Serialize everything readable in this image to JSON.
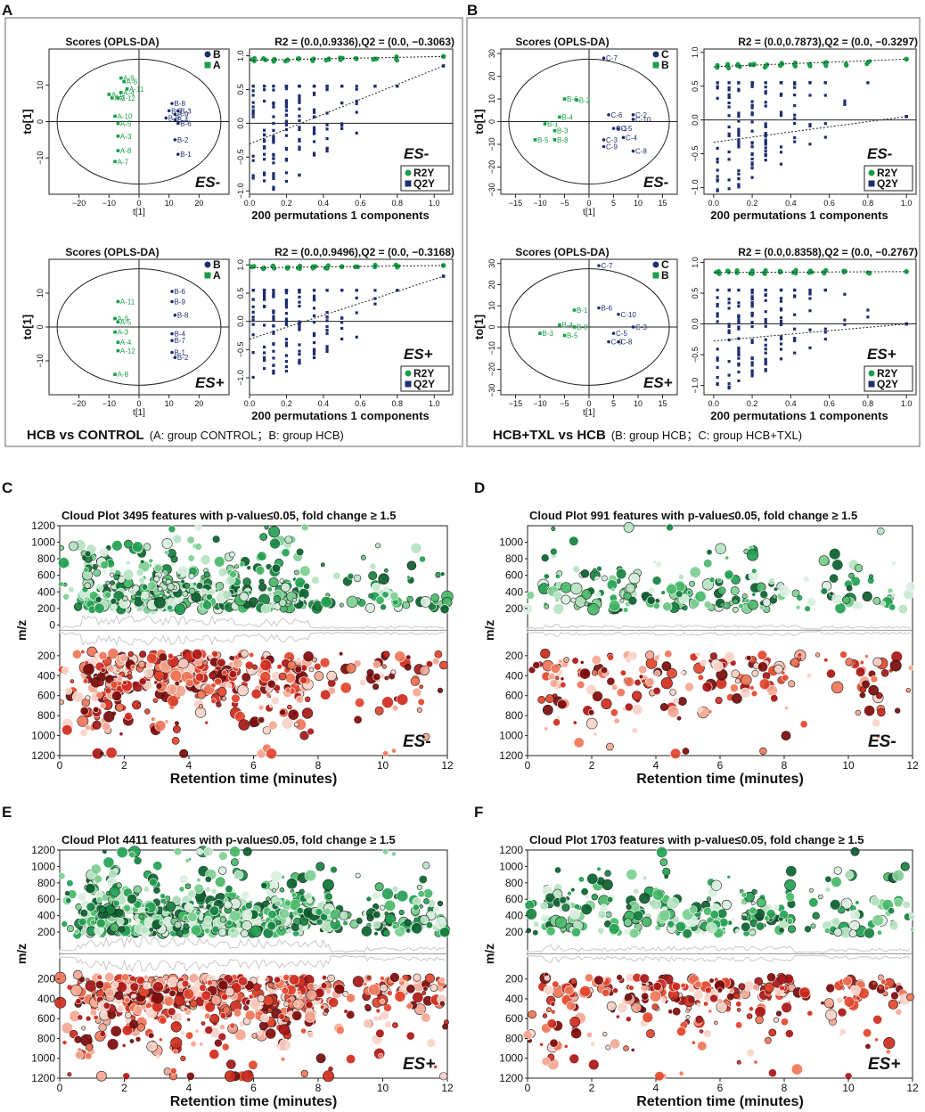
{
  "figure": {
    "panels": {
      "A": {
        "letter": "A",
        "caption_bold": "HCB vs CONTROL",
        "caption_rest": "(A:  group CONTROL；B:  group HCB)"
      },
      "B": {
        "letter": "B",
        "caption_bold": "HCB+TXL vs HCB",
        "caption_rest": "(B:  group HCB；C:  group HCB+TXL)"
      },
      "C": {
        "letter": "C"
      },
      "D": {
        "letter": "D"
      },
      "E": {
        "letter": "E"
      },
      "F": {
        "letter": "F"
      }
    }
  },
  "chart_data": [
    {
      "id": "A-top-scores",
      "type": "scatter",
      "panel": "A",
      "title": "Scores (OPLS-DA)",
      "mode": "ES-",
      "xlabel": "t[1]",
      "ylabel": "to[1]",
      "xlim": [
        -30,
        30
      ],
      "ylim": [
        -20,
        20
      ],
      "xticks": [
        -20,
        -10,
        0,
        10,
        20
      ],
      "yticks": [
        -10,
        0,
        10
      ],
      "legend": [
        {
          "label": "B",
          "marker": "circle",
          "color": "#1f2f6e"
        },
        {
          "label": "A",
          "marker": "square",
          "color": "#1a9e4a"
        }
      ],
      "series": [
        {
          "name": "A",
          "marker": "square",
          "color": "#1a9e4a",
          "points": [
            {
              "label": "A-9",
              "x": -6,
              "y": 12
            },
            {
              "label": "A-6",
              "x": -5,
              "y": 11
            },
            {
              "label": "A-11",
              "x": -4,
              "y": 9
            },
            {
              "label": "A-4",
              "x": -6,
              "y": 8
            },
            {
              "label": "A-1",
              "x": -10,
              "y": 7.5
            },
            {
              "label": "A-2",
              "x": -9,
              "y": 6.5
            },
            {
              "label": "A-12",
              "x": -7,
              "y": 6.5
            },
            {
              "label": "A-10",
              "x": -8,
              "y": 1.5
            },
            {
              "label": "A-5",
              "x": -7,
              "y": -0.5
            },
            {
              "label": "A-3",
              "x": -7,
              "y": -4
            },
            {
              "label": "A-8",
              "x": -7,
              "y": -8
            },
            {
              "label": "A-7",
              "x": -8,
              "y": -11
            }
          ]
        },
        {
          "name": "B",
          "marker": "circle",
          "color": "#1f2f6e",
          "points": [
            {
              "label": "B-8",
              "x": 11,
              "y": 5
            },
            {
              "label": "B-7",
              "x": 10,
              "y": 3
            },
            {
              "label": "B-3",
              "x": 13,
              "y": 3
            },
            {
              "label": "B-9",
              "x": 12,
              "y": 2
            },
            {
              "label": "B-5",
              "x": 9,
              "y": 1
            },
            {
              "label": "B-4",
              "x": 12,
              "y": 0.5
            },
            {
              "label": "B-6",
              "x": 13,
              "y": -0.5
            },
            {
              "label": "B-2",
              "x": 12,
              "y": -5
            },
            {
              "label": "B-1",
              "x": 13,
              "y": -9
            }
          ]
        }
      ]
    },
    {
      "id": "A-top-perm",
      "type": "scatter",
      "panel": "A",
      "title": "R2 = (0.0,0.9336),Q2 = (0.0, −0.3063)",
      "mode": "ES-",
      "xlabel": "200 permutations 1 components",
      "xlim": [
        0,
        1.1
      ],
      "ylim": [
        -1.05,
        1.1
      ],
      "xticks": [
        0.0,
        0.2,
        0.4,
        0.6,
        0.8,
        1.0
      ],
      "yticks": [
        -1.0,
        -0.5,
        0.0,
        0.5,
        1.0
      ],
      "r2_intercept": 0.9336,
      "q2_intercept": -0.3063,
      "r2_actual": 0.99,
      "q2_actual": 0.85,
      "legend": [
        {
          "label": "R2Y",
          "marker": "circle",
          "color": "#1a9e4a"
        },
        {
          "label": "Q2Y",
          "marker": "square",
          "color": "#1f2f6e"
        }
      ]
    },
    {
      "id": "A-bottom-scores",
      "type": "scatter",
      "panel": "A",
      "title": "Scores (OPLS-DA)",
      "mode": "ES+",
      "xlabel": "t[1]",
      "ylabel": "to[1]",
      "xlim": [
        -30,
        30
      ],
      "ylim": [
        -20,
        20
      ],
      "xticks": [
        -20,
        -10,
        0,
        10,
        20
      ],
      "yticks": [
        -10,
        0,
        10
      ],
      "legend": [
        {
          "label": "B",
          "marker": "circle",
          "color": "#1f2f6e"
        },
        {
          "label": "A",
          "marker": "square",
          "color": "#1a9e4a"
        }
      ],
      "series": [
        {
          "name": "A",
          "marker": "square",
          "color": "#1a9e4a",
          "points": [
            {
              "label": "A-11",
              "x": -7,
              "y": 7.5
            },
            {
              "label": "A-9",
              "x": -8,
              "y": 2.5
            },
            {
              "label": "A-5",
              "x": -7,
              "y": 1.5
            },
            {
              "label": "A-3",
              "x": -8,
              "y": -1.5
            },
            {
              "label": "A-4",
              "x": -7,
              "y": -4.5
            },
            {
              "label": "A-12",
              "x": -7,
              "y": -7
            },
            {
              "label": "A-8",
              "x": -8,
              "y": -14
            }
          ]
        },
        {
          "name": "B",
          "marker": "circle",
          "color": "#1f2f6e",
          "points": [
            {
              "label": "B-6",
              "x": 11,
              "y": 10.5
            },
            {
              "label": "B-9",
              "x": 11,
              "y": 7.5
            },
            {
              "label": "B-8",
              "x": 12,
              "y": 3.5
            },
            {
              "label": "B-4",
              "x": 11,
              "y": -2
            },
            {
              "label": "B-7",
              "x": 11,
              "y": -4
            },
            {
              "label": "B-1",
              "x": 11,
              "y": -7.5
            },
            {
              "label": "B-2",
              "x": 12,
              "y": -9
            }
          ]
        }
      ]
    },
    {
      "id": "A-bottom-perm",
      "type": "scatter",
      "panel": "A",
      "title": "R2 = (0.0,0.9496),Q2 = (0.0, −0.3168)",
      "mode": "ES+",
      "xlabel": "200 permutations 1 components",
      "xlim": [
        0,
        1.1
      ],
      "ylim": [
        -1.3,
        1.1
      ],
      "xticks": [
        0.0,
        0.2,
        0.4,
        0.6,
        0.8,
        1.0
      ],
      "yticks": [
        -1.0,
        -0.5,
        0.0,
        0.5,
        1.0
      ],
      "r2_intercept": 0.9496,
      "q2_intercept": -0.3168,
      "r2_actual": 0.99,
      "q2_actual": 0.8,
      "legend": [
        {
          "label": "R2Y",
          "marker": "circle",
          "color": "#1a9e4a"
        },
        {
          "label": "Q2Y",
          "marker": "square",
          "color": "#1f2f6e"
        }
      ]
    },
    {
      "id": "B-top-scores",
      "type": "scatter",
      "panel": "B",
      "title": "Scores (OPLS-DA)",
      "mode": "ES-",
      "xlabel": "t[1]",
      "ylabel": "to[1]",
      "xlim": [
        -18,
        18
      ],
      "ylim": [
        -32,
        32
      ],
      "xticks": [
        -15,
        -10,
        -5,
        0,
        5,
        10,
        15
      ],
      "yticks": [
        -30,
        -20,
        -10,
        0,
        10,
        20,
        30
      ],
      "legend": [
        {
          "label": "C",
          "marker": "circle",
          "color": "#1f2f6e"
        },
        {
          "label": "B",
          "marker": "square",
          "color": "#1a9e4a"
        }
      ],
      "series": [
        {
          "name": "B",
          "marker": "square",
          "color": "#1a9e4a",
          "points": [
            {
              "label": "B-6",
              "x": -5,
              "y": 10
            },
            {
              "label": "B-2",
              "x": -2.5,
              "y": 9.5
            },
            {
              "label": "B-4",
              "x": -6,
              "y": 2
            },
            {
              "label": "B-1",
              "x": -9,
              "y": -1
            },
            {
              "label": "B-3",
              "x": -7,
              "y": -4
            },
            {
              "label": "B-5",
              "x": -11,
              "y": -8
            },
            {
              "label": "B-8",
              "x": -7,
              "y": -8
            }
          ]
        },
        {
          "name": "C",
          "marker": "circle",
          "color": "#1f2f6e",
          "points": [
            {
              "label": "C-7",
              "x": 3,
              "y": 28
            },
            {
              "label": "C-6",
              "x": 4,
              "y": 3
            },
            {
              "label": "C-2",
              "x": 9,
              "y": 3
            },
            {
              "label": "C-10",
              "x": 9,
              "y": 1
            },
            {
              "label": "C-1",
              "x": 5,
              "y": -3
            },
            {
              "label": "C-5",
              "x": 6,
              "y": -3
            },
            {
              "label": "C-4",
              "x": 7,
              "y": -7
            },
            {
              "label": "C-3",
              "x": 3,
              "y": -8
            },
            {
              "label": "C-9",
              "x": 3,
              "y": -11
            },
            {
              "label": "C-8",
              "x": 9,
              "y": -13
            }
          ]
        }
      ]
    },
    {
      "id": "B-top-perm",
      "type": "scatter",
      "panel": "B",
      "title": "R2 = (0.0,0.7873),Q2 = (0.0, −0.3297)",
      "mode": "ES-",
      "xlabel": "200 permutations 1 components",
      "xlim": [
        -0.05,
        1.05
      ],
      "ylim": [
        -1.1,
        1.05
      ],
      "xticks": [
        0.0,
        0.2,
        0.4,
        0.6,
        0.8,
        1.0
      ],
      "yticks": [
        -1.0,
        -0.5,
        0.0,
        0.5,
        1.0
      ],
      "r2_intercept": 0.7873,
      "q2_intercept": -0.3297,
      "r2_actual": 0.9,
      "q2_actual": 0.05,
      "legend": [
        {
          "label": "R2Y",
          "marker": "circle",
          "color": "#1a9e4a"
        },
        {
          "label": "Q2Y",
          "marker": "square",
          "color": "#1f2f6e"
        }
      ]
    },
    {
      "id": "B-bottom-scores",
      "type": "scatter",
      "panel": "B",
      "title": "Scores (OPLS-DA)",
      "mode": "ES+",
      "xlabel": "t[1]",
      "ylabel": "to[1]",
      "xlim": [
        -18,
        18
      ],
      "ylim": [
        -32,
        32
      ],
      "xticks": [
        -15,
        -10,
        -5,
        0,
        5,
        10,
        15
      ],
      "yticks": [
        -30,
        -20,
        -10,
        0,
        10,
        20,
        30
      ],
      "legend": [
        {
          "label": "C",
          "marker": "circle",
          "color": "#1f2f6e"
        },
        {
          "label": "B",
          "marker": "square",
          "color": "#1a9e4a"
        }
      ],
      "series": [
        {
          "name": "B",
          "marker": "square",
          "color": "#1a9e4a",
          "points": [
            {
              "label": "B-1",
              "x": -3,
              "y": 8
            },
            {
              "label": "B-4",
              "x": -6,
              "y": 1
            },
            {
              "label": "B-8",
              "x": -3,
              "y": 0
            },
            {
              "label": "B-3",
              "x": -10,
              "y": -3
            },
            {
              "label": "B-5",
              "x": -5,
              "y": -4
            }
          ]
        },
        {
          "name": "C",
          "marker": "circle",
          "color": "#1f2f6e",
          "points": [
            {
              "label": "C-7",
              "x": 2,
              "y": 29
            },
            {
              "label": "B-6",
              "x": 2,
              "y": 9
            },
            {
              "label": "C-10",
              "x": 6,
              "y": 6
            },
            {
              "label": "C-3",
              "x": 9,
              "y": 0
            },
            {
              "label": "C-5",
              "x": 5,
              "y": -3
            },
            {
              "label": "C-9",
              "x": 4,
              "y": -7
            },
            {
              "label": "C-8",
              "x": 6,
              "y": -7
            }
          ]
        }
      ]
    },
    {
      "id": "B-bottom-perm",
      "type": "scatter",
      "panel": "B",
      "title": "R2 = (0.0,0.8358),Q2 = (0.0, −0.2767)",
      "mode": "ES+",
      "xlabel": "200 permutations 1 components",
      "xlim": [
        -0.05,
        1.05
      ],
      "ylim": [
        -1.15,
        1.05
      ],
      "xticks": [
        0.0,
        0.2,
        0.4,
        0.6,
        0.8,
        1.0
      ],
      "yticks": [
        -1.0,
        -0.5,
        0.0,
        0.5,
        1.0
      ],
      "r2_intercept": 0.8358,
      "q2_intercept": -0.2767,
      "r2_actual": 0.85,
      "q2_actual": 0.0,
      "legend": [
        {
          "label": "R2Y",
          "marker": "circle",
          "color": "#1a9e4a"
        },
        {
          "label": "Q2Y",
          "marker": "square",
          "color": "#1f2f6e"
        }
      ]
    },
    {
      "id": "C-cloud",
      "type": "scatter",
      "panel": "C",
      "mode": "ES-",
      "title": "Cloud Plot 3495 features with p-value≤0.05, fold change  ≥ 1.5",
      "xlabel": "Retention time (minutes)",
      "ylabel": "m/z",
      "xlim": [
        0,
        12
      ],
      "mz_max": 1200,
      "xticks": [
        0,
        2,
        4,
        6,
        8,
        10,
        12
      ],
      "yticks_up": [
        1200,
        1000,
        800,
        600,
        400,
        200,
        0
      ],
      "yticks_down": [
        200,
        400,
        600,
        800,
        1000,
        1200
      ],
      "features": 3495,
      "p_value_max": 0.05,
      "fold_change_min": 1.5,
      "density": [
        [
          0,
          0.7,
          0.4
        ],
        [
          0.7,
          1.2,
          1.6
        ],
        [
          1.2,
          3.0,
          1.6
        ],
        [
          3.0,
          5.5,
          1.5
        ],
        [
          5.5,
          6.2,
          0.7
        ],
        [
          6.2,
          7.7,
          1.3
        ],
        [
          7.7,
          8.6,
          0.3
        ],
        [
          8.6,
          9.5,
          0.25
        ],
        [
          9.5,
          12,
          0.4
        ]
      ]
    },
    {
      "id": "D-cloud",
      "type": "scatter",
      "panel": "D",
      "mode": "ES-",
      "title": "Cloud Plot 991 features with p-value≤0.05, fold change  ≥ 1.5",
      "xlabel": "Retention time (minutes)",
      "ylabel": "m/z",
      "xlim": [
        0,
        12
      ],
      "mz_max": 1200,
      "xticks": [
        0,
        2,
        4,
        6,
        8,
        10,
        12
      ],
      "yticks_up": [
        1000,
        800,
        600,
        400,
        200
      ],
      "yticks_down": [
        200,
        400,
        600,
        800,
        1000,
        1200
      ],
      "features": 991,
      "p_value_max": 0.05,
      "fold_change_min": 1.5,
      "density": [
        [
          0,
          0.5,
          0.2
        ],
        [
          0.5,
          1.0,
          0.9
        ],
        [
          1.0,
          3.0,
          0.45
        ],
        [
          3.0,
          8.5,
          0.5
        ],
        [
          8.5,
          9.2,
          0.1
        ],
        [
          9.2,
          12,
          0.35
        ]
      ]
    },
    {
      "id": "E-cloud",
      "type": "scatter",
      "panel": "E",
      "mode": "ES+",
      "title": "Cloud Plot 4411 features with p-value≤0.05, fold change  ≥ 1.5",
      "xlabel": "Retention time (minutes)",
      "ylabel": "m/z",
      "xlim": [
        0,
        12
      ],
      "mz_max": 1200,
      "xticks": [
        0,
        2,
        4,
        6,
        8,
        10,
        12
      ],
      "yticks_up": [
        1200,
        1000,
        800,
        600,
        400,
        200
      ],
      "yticks_down": [
        200,
        400,
        600,
        800,
        1000,
        1200
      ],
      "features": 4411,
      "p_value_max": 0.05,
      "fold_change_min": 1.5,
      "density": [
        [
          0,
          0.5,
          0.4
        ],
        [
          0.5,
          1.2,
          1.5
        ],
        [
          1.2,
          4.5,
          1.9
        ],
        [
          4.5,
          8.4,
          1.6
        ],
        [
          8.4,
          9.5,
          0.3
        ],
        [
          9.5,
          12,
          0.7
        ]
      ]
    },
    {
      "id": "F-cloud",
      "type": "scatter",
      "panel": "F",
      "mode": "ES+",
      "title": "Cloud Plot 1703 features with p-value≤0.05, fold change  ≥ 1.5",
      "xlabel": "Retention time (minutes)",
      "ylabel": "m/z",
      "xlim": [
        0,
        12
      ],
      "mz_max": 1200,
      "xticks": [
        0,
        2,
        4,
        6,
        8,
        10,
        12
      ],
      "yticks_up": [
        1200,
        1000,
        800,
        600,
        400,
        200
      ],
      "yticks_down": [
        200,
        400,
        600,
        800,
        1000,
        1200
      ],
      "features": 1703,
      "p_value_max": 0.05,
      "fold_change_min": 1.5,
      "density": [
        [
          0,
          0.5,
          0.3
        ],
        [
          0.5,
          1.0,
          1.0
        ],
        [
          1.0,
          3.0,
          0.6
        ],
        [
          3.0,
          8.3,
          0.75
        ],
        [
          8.3,
          9.3,
          0.15
        ],
        [
          9.3,
          12,
          0.5
        ]
      ]
    }
  ]
}
